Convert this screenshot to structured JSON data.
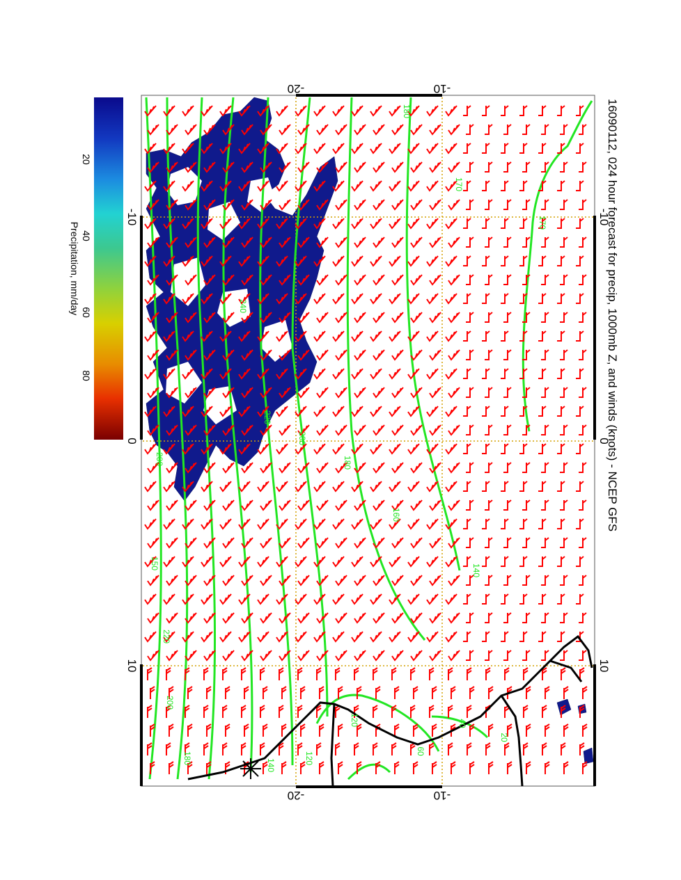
{
  "title": "16090112, 024 hour forecast for precip, 1000mb Z, and winds (knots) - NCEP GFS",
  "colorbar": {
    "label": "Precipitation, mm/day",
    "ticks": [
      "20",
      "40",
      "60",
      "80"
    ],
    "colors": [
      "#0a0a8c",
      "#1040c8",
      "#1890e0",
      "#22d0d0",
      "#40c890",
      "#80d040",
      "#d0d000",
      "#e89000",
      "#e84000",
      "#c80000",
      "#800000"
    ]
  },
  "axes": {
    "top_ticks": [
      "-20",
      "-10"
    ],
    "bottom_ticks": [
      "-20",
      "-10"
    ],
    "left_ticks": [
      "-10",
      "0",
      "10"
    ],
    "right_ticks": [
      "-10",
      "0",
      "10"
    ]
  },
  "contour_labels": [
    "180",
    "170",
    "170",
    "200",
    "240",
    "220",
    "200",
    "180",
    "160",
    "140",
    "150",
    "220",
    "200",
    "180",
    "140",
    "120",
    "120",
    "60",
    "40",
    "20"
  ],
  "colors": {
    "contour": "#22e622",
    "wind_barb": "#ff0000",
    "precip": "#101a8c",
    "coast": "#000000",
    "grid": "#d4a000"
  }
}
